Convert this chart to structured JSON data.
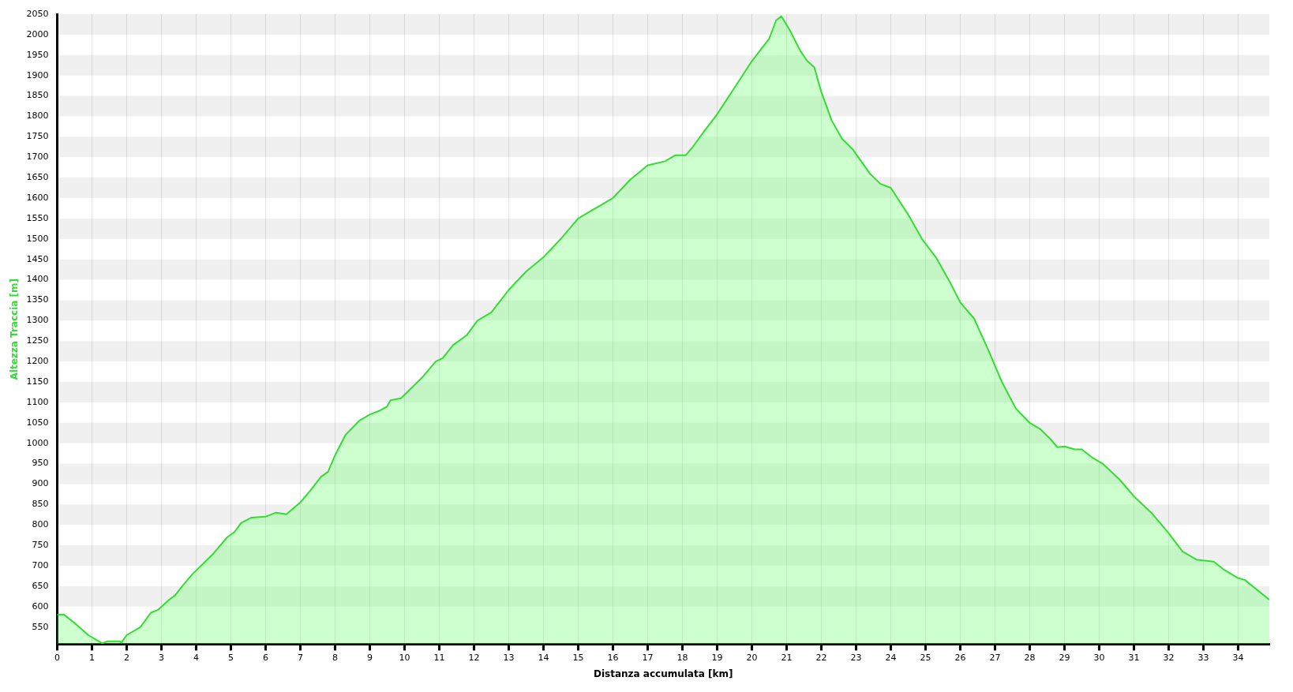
{
  "chart_data": {
    "type": "area",
    "xlabel": "Distanza accumulata [km]",
    "ylabel": "Altezza Traccia [m]",
    "xlim": [
      0,
      34.9
    ],
    "xticks": [
      0,
      1,
      2,
      3,
      4,
      5,
      6,
      7,
      8,
      9,
      10,
      11,
      12,
      13,
      14,
      15,
      16,
      17,
      18,
      19,
      20,
      21,
      22,
      23,
      24,
      25,
      26,
      27,
      28,
      29,
      30,
      31,
      32,
      33,
      34
    ],
    "ylim": [
      508,
      2050
    ],
    "yticks": [
      550,
      600,
      650,
      700,
      750,
      800,
      850,
      900,
      950,
      1000,
      1050,
      1100,
      1150,
      1200,
      1250,
      1300,
      1350,
      1400,
      1450,
      1500,
      1550,
      1600,
      1650,
      1700,
      1750,
      1800,
      1850,
      1900,
      1950,
      2000,
      2050
    ],
    "grid": true,
    "legend": false,
    "series": [
      {
        "color": "#33dd33",
        "x": [
          0,
          0.2,
          0.5,
          0.9,
          1.3,
          1.45,
          1.8,
          1.85,
          2.0,
          2.4,
          2.7,
          2.9,
          3.2,
          3.4,
          3.6,
          3.9,
          4.5,
          4.9,
          5.1,
          5.3,
          5.6,
          6.0,
          6.3,
          6.6,
          7.0,
          7.3,
          7.6,
          7.8,
          8.0,
          8.3,
          8.7,
          9.0,
          9.3,
          9.5,
          9.6,
          9.9,
          10.2,
          10.5,
          10.9,
          11.1,
          11.4,
          11.8,
          12.1,
          12.5,
          13.0,
          13.5,
          14.0,
          14.5,
          15.0,
          15.5,
          16.0,
          16.5,
          17.0,
          17.5,
          17.8,
          18.1,
          18.3,
          18.6,
          19.0,
          19.5,
          20.0,
          20.5,
          20.7,
          20.85,
          21.1,
          21.4,
          21.6,
          21.8,
          22.0,
          22.3,
          22.6,
          22.9,
          23.4,
          23.7,
          24.0,
          24.5,
          24.9,
          25.3,
          25.7,
          26.0,
          26.4,
          26.8,
          27.2,
          27.6,
          28.0,
          28.3,
          28.6,
          28.8,
          29.0,
          29.3,
          29.5,
          29.8,
          30.1,
          30.6,
          31.0,
          31.5,
          32.0,
          32.4,
          32.8,
          33.3,
          33.6,
          34.0,
          34.2,
          34.9
        ],
        "values": [
          580,
          580,
          560,
          530,
          510,
          515,
          515,
          512,
          530,
          550,
          585,
          592,
          615,
          628,
          650,
          680,
          730,
          770,
          782,
          805,
          818,
          820,
          830,
          826,
          855,
          885,
          918,
          930,
          970,
          1020,
          1055,
          1070,
          1080,
          1090,
          1105,
          1110,
          1135,
          1160,
          1200,
          1208,
          1240,
          1265,
          1300,
          1320,
          1375,
          1420,
          1455,
          1500,
          1550,
          1575,
          1600,
          1645,
          1680,
          1690,
          1705,
          1705,
          1725,
          1760,
          1805,
          1870,
          1935,
          1990,
          2035,
          2045,
          2010,
          1960,
          1935,
          1920,
          1860,
          1790,
          1745,
          1720,
          1660,
          1635,
          1625,
          1560,
          1500,
          1455,
          1395,
          1345,
          1305,
          1230,
          1150,
          1085,
          1050,
          1035,
          1010,
          990,
          992,
          985,
          985,
          965,
          950,
          910,
          870,
          830,
          780,
          735,
          715,
          710,
          690,
          670,
          665,
          617
        ]
      }
    ]
  }
}
